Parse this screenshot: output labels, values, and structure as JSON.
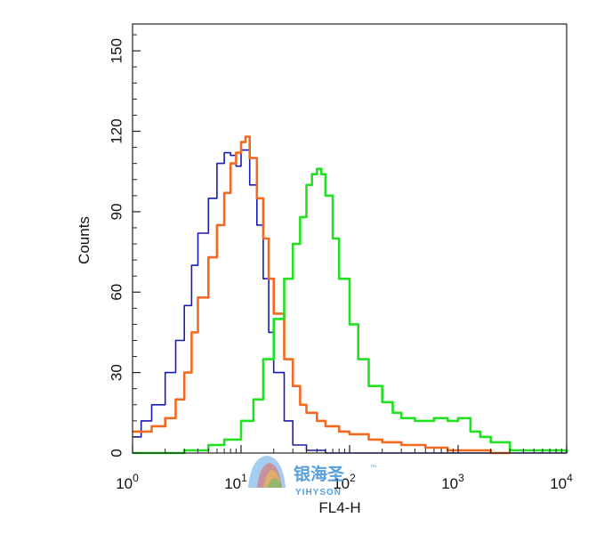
{
  "chart_data": {
    "type": "line",
    "title": "",
    "xlabel": "FL4-H",
    "ylabel": "Counts",
    "x_scale": "log",
    "xlim": [
      1,
      10000
    ],
    "ylim": [
      0,
      160
    ],
    "x_ticks": [
      {
        "base": "10",
        "exp": "0",
        "value": 1
      },
      {
        "base": "10",
        "exp": "1",
        "value": 10
      },
      {
        "base": "10",
        "exp": "2",
        "value": 100
      },
      {
        "base": "10",
        "exp": "3",
        "value": 1000
      },
      {
        "base": "10",
        "exp": "4",
        "value": 10000
      }
    ],
    "y_ticks": [
      "0",
      "30",
      "60",
      "90",
      "120",
      "150"
    ],
    "grid": false,
    "series": [
      {
        "color": "#1a1ab4",
        "x": [
          1.0,
          1.2,
          1.5,
          2.0,
          2.5,
          3.0,
          3.5,
          4.0,
          5.0,
          6.0,
          7.0,
          8.0,
          9.0,
          10.0,
          12.0,
          14.0,
          16.0,
          18.0,
          20.0,
          25.0,
          30.0,
          40.0,
          60.0,
          100.0,
          200.0,
          10000.0
        ],
        "y": [
          6,
          12,
          18,
          30,
          42,
          55,
          70,
          82,
          95,
          108,
          112,
          111,
          107,
          113,
          100,
          85,
          65,
          45,
          30,
          12,
          3,
          1,
          0,
          0,
          0,
          0
        ]
      },
      {
        "color": "#f26a21",
        "x": [
          1.0,
          1.2,
          1.5,
          2.0,
          2.5,
          3.0,
          3.5,
          4.0,
          5.0,
          6.0,
          7.0,
          8.0,
          9.0,
          10.0,
          11.0,
          12.0,
          14.0,
          16.0,
          18.0,
          20.0,
          25.0,
          30.0,
          35.0,
          40.0,
          50.0,
          60.0,
          80.0,
          100.0,
          150.0,
          200.0,
          300.0,
          500.0,
          800.0,
          1000.0,
          2000.0,
          3000.0
        ],
        "y": [
          8,
          8,
          10,
          13,
          20,
          30,
          45,
          58,
          73,
          85,
          97,
          108,
          112,
          116,
          118,
          110,
          95,
          80,
          65,
          52,
          35,
          25,
          18,
          15,
          12,
          10,
          8,
          7,
          5,
          4,
          3,
          2,
          1,
          1,
          0,
          0
        ]
      },
      {
        "color": "#22e022",
        "x": [
          1.0,
          3.0,
          5.0,
          7.0,
          10.0,
          13.0,
          16.0,
          20.0,
          25.0,
          30.0,
          35.0,
          40.0,
          45.0,
          50.0,
          55.0,
          60.0,
          70.0,
          80.0,
          100.0,
          120.0,
          150.0,
          200.0,
          250.0,
          300.0,
          400.0,
          500.0,
          600.0,
          800.0,
          1000.0,
          1300.0,
          1600.0,
          2000.0,
          3000.0,
          10000.0
        ],
        "y": [
          0,
          1,
          3,
          5,
          12,
          20,
          35,
          50,
          65,
          78,
          88,
          100,
          104,
          106,
          104,
          96,
          80,
          65,
          48,
          35,
          25,
          19,
          15,
          13,
          12,
          12,
          13,
          12,
          13,
          8,
          6,
          4,
          1,
          0
        ]
      }
    ]
  },
  "watermark": {
    "chinese": "银海圣",
    "latin": "YIHYSON",
    "mark": "™"
  }
}
